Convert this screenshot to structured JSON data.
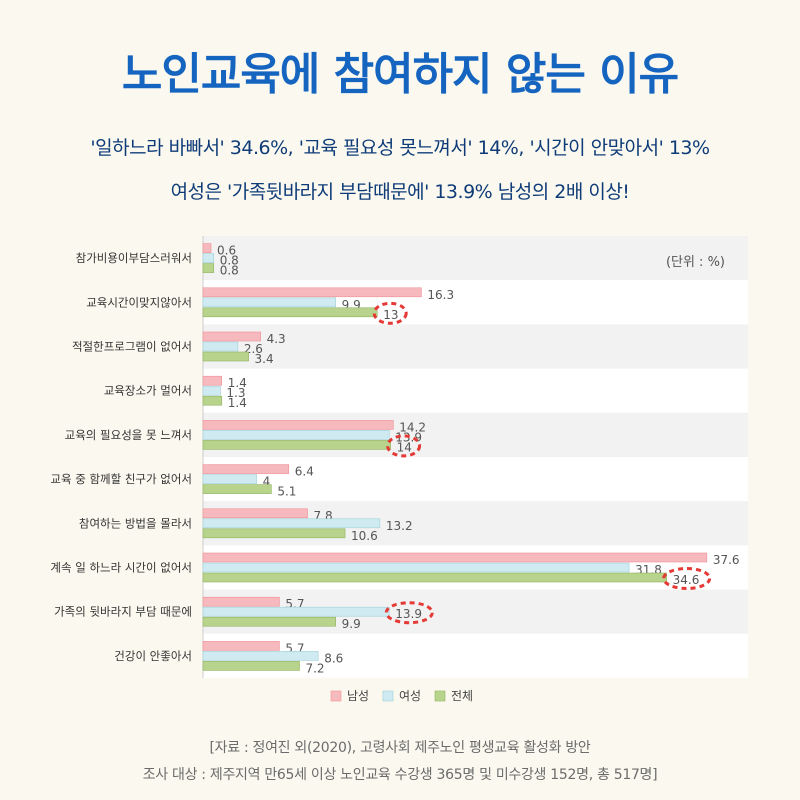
{
  "title": "노인교육에 참여하지 않는 이유",
  "subtitle_line1": "'일하느라 바빠서' 34.6%, '교육 필요성 못느껴서' 14%, '시간이 안맞아서' 13%",
  "subtitle_line2": "여성은 '가족뒷바라지 부담때문에' 13.9% 남성의 2배 이상!",
  "source_line1": "[자료 : 정여진 외(2020), 고령사회 제주노인 평생교육 활성화 방안",
  "source_line2": "조사 대상 : 제주지역 만65세 이상 노인교육 수강생 365명 및 미수강생 152명, 총 517명]",
  "colors": {
    "title": "#1565c0",
    "subtitle": "#0f3c78",
    "male": "#f6b9bd",
    "female": "#cfeaf0",
    "total": "#b8d48c",
    "highlight": "#e53935"
  },
  "chart_data": {
    "type": "bar",
    "orientation": "horizontal",
    "unit_label": "(단위 : %)",
    "categories": [
      "참가비용이부담스러워서",
      "교육시간이맞지않아서",
      "적절한프로그램이 없어서",
      "교육장소가 멀어서",
      "교육의 필요성을 못 느껴서",
      "교육 중 함께할 친구가 없어서",
      "참여하는 방법을 몰라서",
      "계속 일 하느라 시간이 없어서",
      "가족의 뒷바라지 부담 때문에",
      "건강이 안좋아서"
    ],
    "series": [
      {
        "name": "남성",
        "values": [
          0.6,
          16.3,
          4.3,
          1.4,
          14.2,
          6.4,
          7.8,
          37.6,
          5.7,
          5.7
        ]
      },
      {
        "name": "여성",
        "values": [
          0.8,
          9.9,
          2.6,
          1.3,
          13.9,
          4,
          13.2,
          31.8,
          13.9,
          8.6
        ]
      },
      {
        "name": "전체",
        "values": [
          0.8,
          13,
          3.4,
          1.4,
          14,
          5.1,
          10.6,
          34.6,
          9.9,
          7.2
        ]
      }
    ],
    "highlighted": [
      {
        "series": "전체",
        "category": "교육시간이맞지않아서"
      },
      {
        "series": "전체",
        "category": "교육의 필요성을 못 느껴서"
      },
      {
        "series": "전체",
        "category": "계속 일 하느라 시간이 없어서"
      },
      {
        "series": "여성",
        "category": "가족의 뒷바라지 부담 때문에"
      }
    ],
    "xlim": [
      0,
      38
    ],
    "legend_position": "bottom"
  }
}
